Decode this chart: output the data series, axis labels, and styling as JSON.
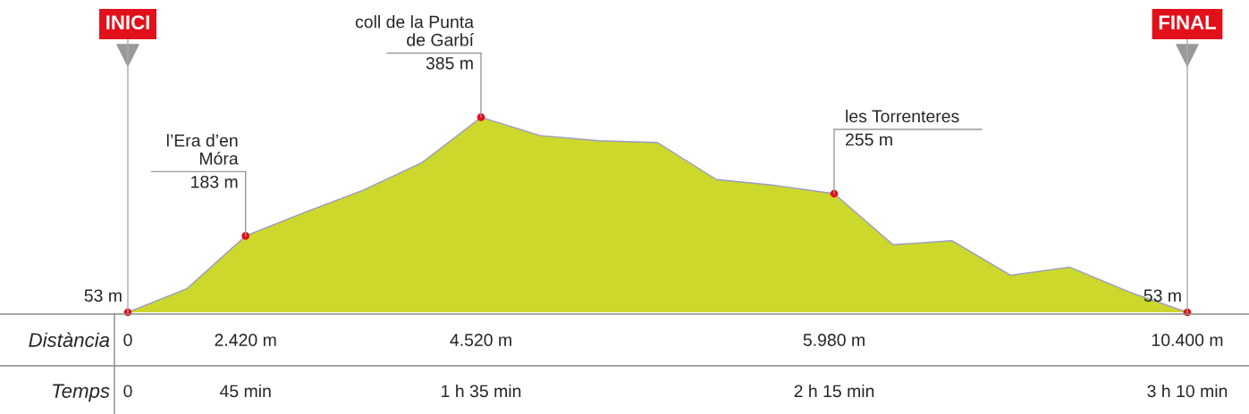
{
  "chart_data": {
    "type": "area",
    "categories": [
      "0",
      null,
      "2.420 m",
      null,
      null,
      null,
      "4.520 m",
      null,
      null,
      null,
      null,
      null,
      "5.980 m",
      null,
      null,
      null,
      null,
      null,
      "10.400 m"
    ],
    "series": [
      {
        "color": "#cdd82c",
        "values": [
          53,
          93,
          183,
          223,
          261,
          308,
          385,
          354,
          345,
          342,
          279,
          269,
          255,
          168,
          175,
          116,
          130,
          88,
          53
        ],
        "value_labels": [
          "53 m",
          null,
          "183 m",
          null,
          null,
          null,
          "385 m",
          null,
          null,
          null,
          null,
          null,
          "255 m",
          null,
          null,
          null,
          null,
          null,
          "53 m"
        ]
      }
    ],
    "xlabel": "Distància",
    "annotations": [
      {
        "text": "INICI",
        "x": "0",
        "y": 53
      },
      {
        "text": "FINAL",
        "x": "10.400 m",
        "y": 53
      },
      {
        "text": "l’Era d’en\nMóra",
        "x": "2.420 m",
        "y": 183
      },
      {
        "text": "coll de la Punta\nde Garbí",
        "x": "4.520 m",
        "y": 385
      },
      {
        "text": "les Torrenteres",
        "x": "5.980 m",
        "y": 255
      },
      "Temps",
      "0",
      "45 min",
      "1 h 35 min",
      "2 h 15 min",
      "3 h 10 min"
    ]
  }
}
